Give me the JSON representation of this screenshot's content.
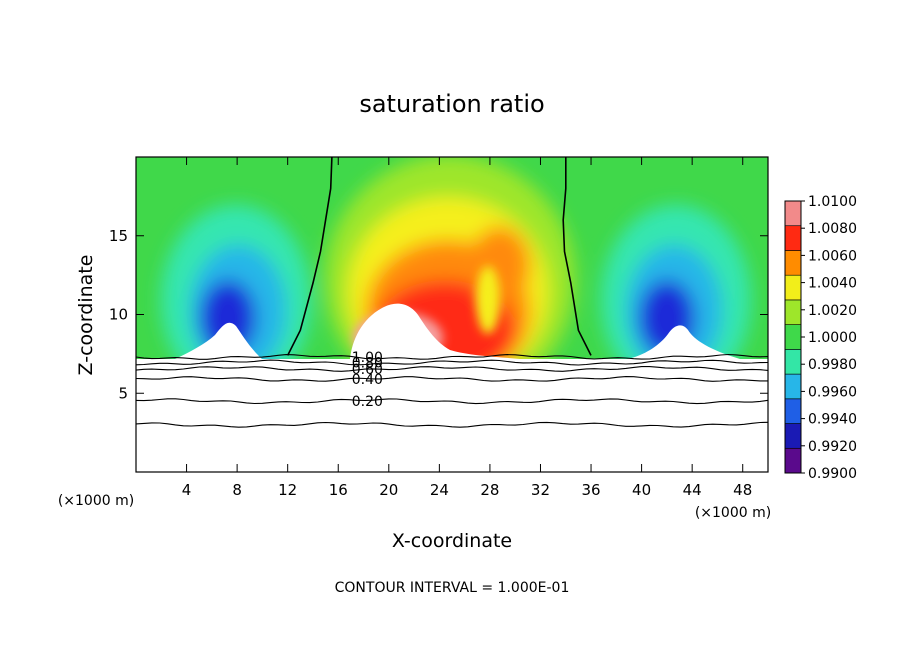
{
  "chart_data": {
    "type": "heatmap",
    "title": "saturation ratio",
    "xlabel": "X-coordinate",
    "ylabel": "Z-coordinate",
    "x_unit_left": "(×1000 m)",
    "x_unit_right": "(×1000 m)",
    "footer": "CONTOUR INTERVAL = 1.000E-01",
    "xlim": [
      0,
      50
    ],
    "ylim": [
      0,
      20
    ],
    "x_ticks": [
      4,
      8,
      12,
      16,
      20,
      24,
      28,
      32,
      36,
      40,
      44,
      48
    ],
    "y_ticks": [
      5,
      10,
      15
    ],
    "colorbar": {
      "min": 0.99,
      "max": 1.01,
      "labels": [
        "1.0100",
        "1.0080",
        "1.0060",
        "1.0040",
        "1.0020",
        "1.0000",
        "0.9980",
        "0.9960",
        "0.9940",
        "0.9920",
        "0.9900"
      ],
      "colors": [
        "#5a0a8c",
        "#1a1ab4",
        "#1f5fe6",
        "#27b6e8",
        "#33e6a6",
        "#3fd94a",
        "#9ee62a",
        "#f2ee1a",
        "#ff8c00",
        "#ff2a12",
        "#f28a8a"
      ]
    },
    "field_colors": {
      "green": "#40d84a",
      "cyan": "#34e6b0",
      "blue": "#1a2ad8",
      "yellow": "#f5ef1a",
      "orange": "#ff8a0a",
      "red": "#ff2a14",
      "pink": "#f5a0a0"
    },
    "contour_lines": [
      {
        "level": "1.00",
        "z": 7.3
      },
      {
        "level": "0.80",
        "z": 6.95
      },
      {
        "level": "0.60",
        "z": 6.55
      },
      {
        "level": "0.40",
        "z": 5.9
      },
      {
        "level": "0.20",
        "z": 4.5
      },
      {
        "level": "",
        "z": 3.0
      }
    ],
    "saturation_boundary": {
      "left": [
        [
          15.5,
          20
        ],
        [
          15.4,
          18
        ],
        [
          15.0,
          16
        ],
        [
          14.6,
          14
        ],
        [
          14.0,
          12
        ],
        [
          13.0,
          9
        ],
        [
          12.0,
          7.4
        ]
      ],
      "right": [
        [
          34.0,
          20
        ],
        [
          34.0,
          18
        ],
        [
          33.8,
          16
        ],
        [
          33.9,
          14
        ],
        [
          34.4,
          12
        ],
        [
          35.0,
          9
        ],
        [
          36.0,
          7.4
        ]
      ]
    }
  }
}
